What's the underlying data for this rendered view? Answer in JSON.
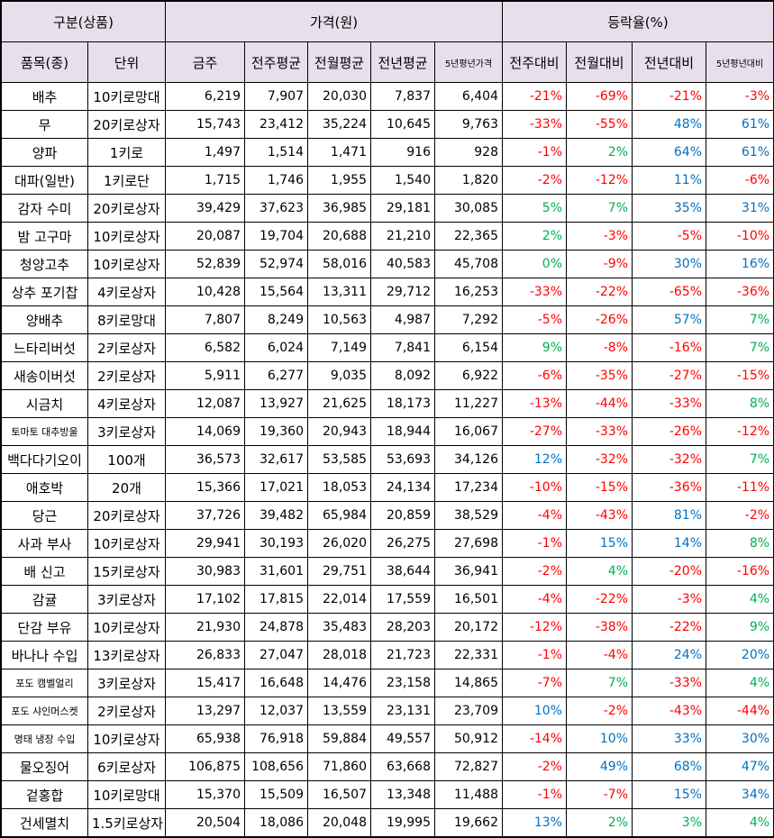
{
  "header": {
    "group_item": "구분(상품)",
    "group_price": "가격(원)",
    "group_change": "등락율(%)",
    "columns": [
      "품목(종)",
      "단위",
      "금주",
      "전주평균",
      "전월평균",
      "전년평균",
      "5년평년가격",
      "전주대비",
      "전월대비",
      "전년대비",
      "5년평년대비"
    ]
  },
  "colors": {
    "decrease": "#ff0000",
    "neutral": "#00b050",
    "increase": "#0070c0",
    "header_bg": "#e6e0ec"
  },
  "rows": [
    {
      "item": "배추",
      "unit": "10키로망대",
      "this_week": "6,219",
      "prev_week": "7,907",
      "prev_month": "20,030",
      "prev_year": "7,837",
      "five_year": "6,404",
      "vs_week": "-21%",
      "vs_month": "-69%",
      "vs_year": "-21%",
      "vs_five": "-3%"
    },
    {
      "item": "무",
      "unit": "20키로상자",
      "this_week": "15,743",
      "prev_week": "23,412",
      "prev_month": "35,224",
      "prev_year": "10,645",
      "five_year": "9,763",
      "vs_week": "-33%",
      "vs_month": "-55%",
      "vs_year": "48%",
      "vs_five": "61%"
    },
    {
      "item": "양파",
      "unit": "1키로",
      "this_week": "1,497",
      "prev_week": "1,514",
      "prev_month": "1,471",
      "prev_year": "916",
      "five_year": "928",
      "vs_week": "-1%",
      "vs_month": "2%",
      "vs_year": "64%",
      "vs_five": "61%"
    },
    {
      "item": "대파(일반)",
      "unit": "1키로단",
      "this_week": "1,715",
      "prev_week": "1,746",
      "prev_month": "1,955",
      "prev_year": "1,540",
      "five_year": "1,820",
      "vs_week": "-2%",
      "vs_month": "-12%",
      "vs_year": "11%",
      "vs_five": "-6%"
    },
    {
      "item": "감자 수미",
      "unit": "20키로상자",
      "this_week": "39,429",
      "prev_week": "37,623",
      "prev_month": "36,985",
      "prev_year": "29,181",
      "five_year": "30,085",
      "vs_week": "5%",
      "vs_month": "7%",
      "vs_year": "35%",
      "vs_five": "31%"
    },
    {
      "item": "밤 고구마",
      "unit": "10키로상자",
      "this_week": "20,087",
      "prev_week": "19,704",
      "prev_month": "20,688",
      "prev_year": "21,210",
      "five_year": "22,365",
      "vs_week": "2%",
      "vs_month": "-3%",
      "vs_year": "-5%",
      "vs_five": "-10%"
    },
    {
      "item": "청양고추",
      "unit": "10키로상자",
      "this_week": "52,839",
      "prev_week": "52,974",
      "prev_month": "58,016",
      "prev_year": "40,583",
      "five_year": "45,708",
      "vs_week": "0%",
      "vs_month": "-9%",
      "vs_year": "30%",
      "vs_five": "16%"
    },
    {
      "item": "상추 포기찹",
      "unit": "4키로상자",
      "this_week": "10,428",
      "prev_week": "15,564",
      "prev_month": "13,311",
      "prev_year": "29,712",
      "five_year": "16,253",
      "vs_week": "-33%",
      "vs_month": "-22%",
      "vs_year": "-65%",
      "vs_five": "-36%"
    },
    {
      "item": "양배추",
      "unit": "8키로망대",
      "this_week": "7,807",
      "prev_week": "8,249",
      "prev_month": "10,563",
      "prev_year": "4,987",
      "five_year": "7,292",
      "vs_week": "-5%",
      "vs_month": "-26%",
      "vs_year": "57%",
      "vs_five": "7%"
    },
    {
      "item": "느타리버섯",
      "unit": "2키로상자",
      "this_week": "6,582",
      "prev_week": "6,024",
      "prev_month": "7,149",
      "prev_year": "7,841",
      "five_year": "6,154",
      "vs_week": "9%",
      "vs_month": "-8%",
      "vs_year": "-16%",
      "vs_five": "7%"
    },
    {
      "item": "새송이버섯",
      "unit": "2키로상자",
      "this_week": "5,911",
      "prev_week": "6,277",
      "prev_month": "9,035",
      "prev_year": "8,092",
      "five_year": "6,922",
      "vs_week": "-6%",
      "vs_month": "-35%",
      "vs_year": "-27%",
      "vs_five": "-15%"
    },
    {
      "item": "시금치",
      "unit": "4키로상자",
      "this_week": "12,087",
      "prev_week": "13,927",
      "prev_month": "21,625",
      "prev_year": "18,173",
      "five_year": "11,227",
      "vs_week": "-13%",
      "vs_month": "-44%",
      "vs_year": "-33%",
      "vs_five": "8%"
    },
    {
      "item": "토마토 대추방울",
      "unit": "3키로상자",
      "this_week": "14,069",
      "prev_week": "19,360",
      "prev_month": "20,943",
      "prev_year": "18,944",
      "five_year": "16,067",
      "vs_week": "-27%",
      "vs_month": "-33%",
      "vs_year": "-26%",
      "vs_five": "-12%"
    },
    {
      "item": "백다다기오이",
      "unit": "100개",
      "this_week": "36,573",
      "prev_week": "32,617",
      "prev_month": "53,585",
      "prev_year": "53,693",
      "five_year": "34,126",
      "vs_week": "12%",
      "vs_month": "-32%",
      "vs_year": "-32%",
      "vs_five": "7%"
    },
    {
      "item": "애호박",
      "unit": "20개",
      "this_week": "15,366",
      "prev_week": "17,021",
      "prev_month": "18,053",
      "prev_year": "24,134",
      "five_year": "17,234",
      "vs_week": "-10%",
      "vs_month": "-15%",
      "vs_year": "-36%",
      "vs_five": "-11%"
    },
    {
      "item": "당근",
      "unit": "20키로상자",
      "this_week": "37,726",
      "prev_week": "39,482",
      "prev_month": "65,984",
      "prev_year": "20,859",
      "five_year": "38,529",
      "vs_week": "-4%",
      "vs_month": "-43%",
      "vs_year": "81%",
      "vs_five": "-2%"
    },
    {
      "item": "사과 부사",
      "unit": "10키로상자",
      "this_week": "29,941",
      "prev_week": "30,193",
      "prev_month": "26,020",
      "prev_year": "26,275",
      "five_year": "27,698",
      "vs_week": "-1%",
      "vs_month": "15%",
      "vs_year": "14%",
      "vs_five": "8%"
    },
    {
      "item": "배 신고",
      "unit": "15키로상자",
      "this_week": "30,983",
      "prev_week": "31,601",
      "prev_month": "29,751",
      "prev_year": "38,644",
      "five_year": "36,941",
      "vs_week": "-2%",
      "vs_month": "4%",
      "vs_year": "-20%",
      "vs_five": "-16%"
    },
    {
      "item": "감귤",
      "unit": "3키로상자",
      "this_week": "17,102",
      "prev_week": "17,815",
      "prev_month": "22,014",
      "prev_year": "17,559",
      "five_year": "16,501",
      "vs_week": "-4%",
      "vs_month": "-22%",
      "vs_year": "-3%",
      "vs_five": "4%"
    },
    {
      "item": "단감 부유",
      "unit": "10키로상자",
      "this_week": "21,930",
      "prev_week": "24,878",
      "prev_month": "35,483",
      "prev_year": "28,203",
      "five_year": "20,172",
      "vs_week": "-12%",
      "vs_month": "-38%",
      "vs_year": "-22%",
      "vs_five": "9%"
    },
    {
      "item": "바나나 수입",
      "unit": "13키로상자",
      "this_week": "26,833",
      "prev_week": "27,047",
      "prev_month": "28,018",
      "prev_year": "21,723",
      "five_year": "22,331",
      "vs_week": "-1%",
      "vs_month": "-4%",
      "vs_year": "24%",
      "vs_five": "20%"
    },
    {
      "item": "포도 캠벨얼리",
      "unit": "3키로상자",
      "this_week": "15,417",
      "prev_week": "16,648",
      "prev_month": "14,476",
      "prev_year": "23,158",
      "five_year": "14,865",
      "vs_week": "-7%",
      "vs_month": "7%",
      "vs_year": "-33%",
      "vs_five": "4%"
    },
    {
      "item": "포도 샤인머스켓",
      "unit": "2키로상자",
      "this_week": "13,297",
      "prev_week": "12,037",
      "prev_month": "13,559",
      "prev_year": "23,131",
      "five_year": "23,709",
      "vs_week": "10%",
      "vs_month": "-2%",
      "vs_year": "-43%",
      "vs_five": "-44%"
    },
    {
      "item": "명태 냉장 수입",
      "unit": "10키로상자",
      "this_week": "65,938",
      "prev_week": "76,918",
      "prev_month": "59,884",
      "prev_year": "49,557",
      "five_year": "50,912",
      "vs_week": "-14%",
      "vs_month": "10%",
      "vs_year": "33%",
      "vs_five": "30%"
    },
    {
      "item": "물오징어",
      "unit": "6키로상자",
      "this_week": "106,875",
      "prev_week": "108,656",
      "prev_month": "71,860",
      "prev_year": "63,668",
      "five_year": "72,827",
      "vs_week": "-2%",
      "vs_month": "49%",
      "vs_year": "68%",
      "vs_five": "47%"
    },
    {
      "item": "겉홍합",
      "unit": "10키로망대",
      "this_week": "15,370",
      "prev_week": "15,509",
      "prev_month": "16,507",
      "prev_year": "13,348",
      "five_year": "11,488",
      "vs_week": "-1%",
      "vs_month": "-7%",
      "vs_year": "15%",
      "vs_five": "34%"
    },
    {
      "item": "건세멸치",
      "unit": "1.5키로상자",
      "this_week": "20,504",
      "prev_week": "18,086",
      "prev_month": "20,048",
      "prev_year": "19,995",
      "five_year": "19,662",
      "vs_week": "13%",
      "vs_month": "2%",
      "vs_year": "3%",
      "vs_five": "4%"
    }
  ]
}
